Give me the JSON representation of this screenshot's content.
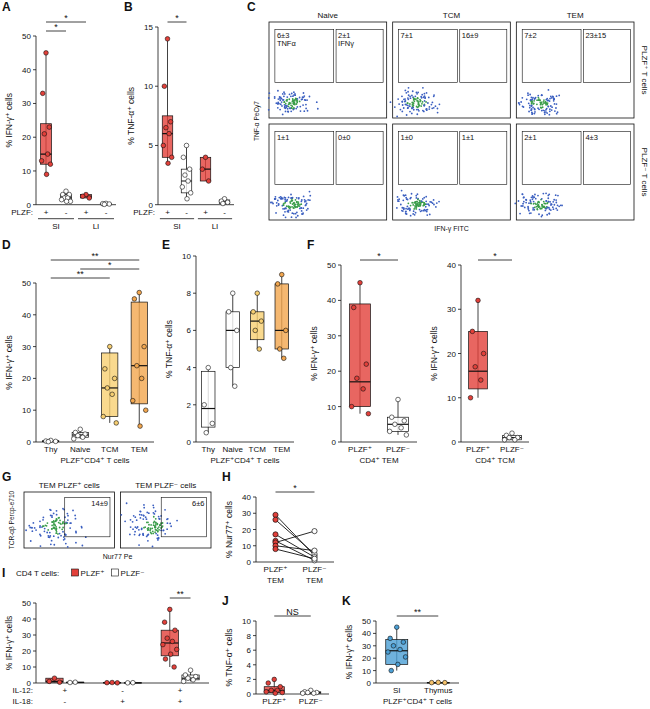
{
  "chart_data": [
    {
      "type": "box",
      "title": "A",
      "ylabel": "% IFN-γ⁺ cells",
      "ylim": [
        0,
        50
      ],
      "yticks": [
        0,
        10,
        20,
        30,
        40,
        50
      ],
      "xlabel": "PLZF:",
      "categories": [
        "+",
        "-",
        "+",
        "-"
      ],
      "groups": [
        {
          "label": "SI",
          "from": 0,
          "to": 1
        },
        {
          "label": "LI",
          "from": 2,
          "to": 3
        }
      ],
      "colors": [
        "#e2403a",
        "#ffffff",
        "#e2403a",
        "#ffffff"
      ],
      "points": [
        [
          45,
          33,
          23,
          21,
          15,
          13,
          12,
          9
        ],
        [
          4,
          3,
          3,
          2,
          2,
          1.5,
          1,
          1
        ],
        [
          3,
          2.5,
          2
        ],
        [
          0.4,
          0.3,
          0.2,
          0.1
        ]
      ],
      "min": [
        9,
        1,
        2,
        0.1
      ],
      "q1": [
        12,
        1.5,
        2,
        0.1
      ],
      "median": [
        15,
        2,
        2.5,
        0.2
      ],
      "q3": [
        24,
        3,
        3,
        0.3
      ],
      "max": [
        45,
        4,
        3,
        0.4
      ],
      "brackets": [
        {
          "from": 0,
          "to": 2,
          "label": "*"
        },
        {
          "from": 0,
          "to": 1,
          "label": "*"
        }
      ]
    },
    {
      "type": "box",
      "title": "B",
      "ylabel": "% TNF-α⁺ cells",
      "ylim": [
        0,
        15
      ],
      "yticks": [
        0,
        5,
        10,
        15
      ],
      "xlabel": "PLZF:",
      "categories": [
        "+",
        "-",
        "+",
        "-"
      ],
      "groups": [
        {
          "label": "SI",
          "from": 0,
          "to": 1
        },
        {
          "label": "LI",
          "from": 2,
          "to": 3
        }
      ],
      "colors": [
        "#e2403a",
        "#ffffff",
        "#e2403a",
        "#ffffff"
      ],
      "points": [
        [
          14,
          10,
          7,
          6.5,
          6,
          5,
          4,
          3.5
        ],
        [
          5,
          4,
          3,
          2.5,
          2,
          1.5,
          1,
          0.5
        ],
        [
          4,
          3,
          2
        ],
        [
          0.5,
          0.3,
          0.2,
          0.1
        ]
      ],
      "min": [
        3.5,
        0.5,
        2,
        0.1
      ],
      "q1": [
        4,
        1,
        2,
        0.1
      ],
      "median": [
        6,
        2,
        3,
        0.25
      ],
      "q3": [
        7.5,
        3,
        4,
        0.4
      ],
      "max": [
        14,
        5,
        4,
        0.5
      ],
      "brackets": [
        {
          "from": 0,
          "to": 1,
          "label": "*"
        }
      ]
    },
    {
      "type": "flow",
      "title": "C",
      "xlabel": "IFN-γ FITC",
      "ylabel": "TNF-α PeCy7",
      "columns": [
        "Naive",
        "TCM",
        "TEM"
      ],
      "rows": [
        "PLZF⁺ T cells",
        "PLZF⁻ T cells"
      ],
      "gate_names": [
        "TNFα",
        "IFNγ"
      ],
      "gates": [
        [
          [
            "6±3",
            "2±1"
          ],
          [
            "7±1",
            "16±9"
          ],
          [
            "7±2",
            "23±15"
          ]
        ],
        [
          [
            "1±1",
            "0±0"
          ],
          [
            "1±0",
            "1±1"
          ],
          [
            "2±1",
            "4±3"
          ]
        ]
      ]
    },
    {
      "type": "box",
      "title": "D",
      "ylabel": "% IFN-γ⁺ cells",
      "ylim": [
        0,
        50
      ],
      "yticks": [
        0,
        10,
        20,
        30,
        40,
        50
      ],
      "xlabel": "PLZF⁺CD4⁺ T cells",
      "categories": [
        "Thy",
        "Naive",
        "TCM",
        "TEM"
      ],
      "colors": [
        "#ffffff",
        "#ffffff",
        "#f7cf72",
        "#f2a64e"
      ],
      "points": [
        [
          0.5,
          0.3,
          0.2,
          0.1
        ],
        [
          4,
          3,
          2.5,
          2,
          1.5,
          1
        ],
        [
          30,
          23,
          20,
          17,
          15,
          8,
          6
        ],
        [
          47,
          45,
          30,
          24,
          20,
          13,
          10,
          5
        ]
      ],
      "min": [
        0.1,
        1,
        6,
        5
      ],
      "q1": [
        0.1,
        1.5,
        8,
        12
      ],
      "median": [
        0.25,
        2.2,
        17,
        24
      ],
      "q3": [
        0.4,
        3,
        28,
        44
      ],
      "max": [
        0.5,
        4,
        30,
        47
      ],
      "brackets": [
        {
          "from": 0,
          "to": 3,
          "label": "**"
        },
        {
          "from": 1,
          "to": 3,
          "label": "*"
        },
        {
          "from": 0,
          "to": 2,
          "label": "**"
        }
      ]
    },
    {
      "type": "box",
      "title": "E",
      "ylabel": "% TNF-α⁺ cells",
      "ylim": [
        0,
        10
      ],
      "yticks": [
        0,
        2,
        4,
        6,
        8,
        10
      ],
      "xlabel": "PLZF⁺CD4⁺ T cells",
      "categories": [
        "Thy",
        "Naive",
        "TCM",
        "TEM"
      ],
      "colors": [
        "#ffffff",
        "#ffffff",
        "#f7cf72",
        "#f2a64e"
      ],
      "points": [
        [
          4,
          2,
          1,
          0.5
        ],
        [
          8,
          7,
          6,
          4,
          3
        ],
        [
          8,
          7,
          6.5,
          6,
          5
        ],
        [
          9,
          8.5,
          6,
          5,
          4.5
        ]
      ],
      "min": [
        0.5,
        3,
        5,
        4.5
      ],
      "q1": [
        0.8,
        4,
        5.5,
        5
      ],
      "median": [
        1.8,
        6,
        6.5,
        6
      ],
      "q3": [
        3.8,
        7,
        7,
        8.5
      ],
      "max": [
        4,
        8,
        8,
        9
      ],
      "brackets": []
    },
    {
      "type": "box",
      "title": "F",
      "ylabel": "% IFN-γ⁺ cells",
      "ylim": [
        0,
        50
      ],
      "yticks": [
        0,
        10,
        20,
        30,
        40,
        50
      ],
      "xlabel": "CD4⁺ TEM",
      "categories": [
        "PLZF⁺",
        "PLZF⁻"
      ],
      "colors": [
        "#e2403a",
        "#ffffff"
      ],
      "points": [
        [
          45,
          38,
          22,
          18,
          15,
          10,
          8
        ],
        [
          12,
          7,
          6,
          5,
          4,
          3,
          2
        ]
      ],
      "min": [
        8,
        2
      ],
      "q1": [
        10,
        3
      ],
      "median": [
        17,
        5
      ],
      "q3": [
        39,
        7
      ],
      "max": [
        45,
        12
      ],
      "brackets": [
        {
          "from": 0,
          "to": 1,
          "label": "*"
        }
      ]
    },
    {
      "type": "box",
      "ylabel": "% IFN-γ⁺ cells",
      "ylim": [
        0,
        40
      ],
      "yticks": [
        0,
        10,
        20,
        30,
        40
      ],
      "xlabel": "CD4⁺ TCM",
      "categories": [
        "PLZF⁺",
        "PLZF⁻"
      ],
      "colors": [
        "#e2403a",
        "#ffffff"
      ],
      "points": [
        [
          32,
          25,
          20,
          17,
          14,
          10
        ],
        [
          2,
          1.5,
          1,
          1,
          0.5,
          0.5
        ]
      ],
      "min": [
        10,
        0.5
      ],
      "q1": [
        12,
        0.5
      ],
      "median": [
        16,
        1
      ],
      "q3": [
        25,
        1.5
      ],
      "max": [
        32,
        2
      ],
      "brackets": [
        {
          "from": 0,
          "to": 1,
          "label": "*"
        }
      ]
    },
    {
      "type": "flow",
      "title": "G",
      "xlabel": "Nur77 Pe",
      "ylabel": "TCR-αβ Percp-e710",
      "columns": [
        "TEM PLZF⁺ cells",
        "TEM PLZF⁻ cells"
      ],
      "gates": [
        [
          [
            "14±9"
          ],
          [
            "6±6"
          ]
        ]
      ]
    },
    {
      "type": "paired",
      "title": "H",
      "ylabel": "% Nur77⁺ cells",
      "ylim": [
        0,
        40
      ],
      "yticks": [
        0,
        10,
        20,
        30,
        40
      ],
      "categories": [
        "PLZF⁺ TEM",
        "PLZF⁻ TEM"
      ],
      "colors": [
        "#e2403a",
        "#ffffff"
      ],
      "pairs": [
        [
          29,
          4
        ],
        [
          26,
          5
        ],
        [
          17,
          3
        ],
        [
          13,
          1
        ],
        [
          12,
          19
        ],
        [
          10,
          7
        ],
        [
          8,
          2
        ]
      ],
      "brackets": [
        {
          "from": 0,
          "to": 1,
          "label": "*"
        }
      ]
    },
    {
      "type": "box",
      "title": "I",
      "ylabel": "% IFN-γ⁺ cells",
      "ylim": [
        0,
        50
      ],
      "yticks": [
        0,
        10,
        20,
        30,
        40,
        50
      ],
      "legend": "top-left",
      "legend_title": "CD4 T cells:",
      "conditions": [
        {
          "label": "IL-12:",
          "values": [
            "+",
            "-",
            "+"
          ]
        },
        {
          "label": "IL-18:",
          "values": [
            "-",
            "+",
            "+"
          ]
        }
      ],
      "series": [
        {
          "name": "PLZF⁺",
          "color": "#e2403a",
          "points": [
            [
              3,
              1,
              0.5
            ],
            [
              0.3,
              0.2,
              0.1
            ],
            [
              46,
              38,
              33,
              28,
              26,
              24,
              21,
              18,
              15,
              10
            ]
          ],
          "min": [
            0.5,
            0.1,
            10
          ],
          "q1": [
            0.5,
            0.1,
            17
          ],
          "median": [
            1,
            0.2,
            25
          ],
          "q3": [
            3,
            0.3,
            33
          ],
          "max": [
            3,
            0.3,
            46
          ]
        },
        {
          "name": "PLZF⁻",
          "color": "#ffffff",
          "points": [
            [
              0.5,
              0.3
            ],
            [
              0.2,
              0.1
            ],
            [
              8,
              5,
              4,
              3,
              2,
              1
            ]
          ],
          "min": [
            0.3,
            0.1,
            1
          ],
          "q1": [
            0.3,
            0.1,
            2
          ],
          "median": [
            0.4,
            0.15,
            3
          ],
          "q3": [
            0.5,
            0.2,
            5
          ],
          "max": [
            0.5,
            0.2,
            8
          ]
        }
      ],
      "brackets": [
        {
          "from": 2,
          "to": 2,
          "label": "**"
        }
      ]
    },
    {
      "type": "box",
      "title": "J",
      "ylabel": "% TNF-α⁺ cells",
      "ylim": [
        0,
        10
      ],
      "yticks": [
        0,
        2,
        4,
        6,
        8,
        10
      ],
      "categories": [
        "PLZF⁺",
        "PLZF⁻"
      ],
      "colors": [
        "#e2403a",
        "#ffffff"
      ],
      "points": [
        [
          2,
          1.5,
          1,
          0.5,
          0.5,
          0.3,
          0.2,
          0.1
        ],
        [
          0.5,
          0.3,
          0.2,
          0.2,
          0.1,
          0.1
        ]
      ],
      "min": [
        0.1,
        0.1
      ],
      "q1": [
        0.2,
        0.1
      ],
      "median": [
        0.5,
        0.2
      ],
      "q3": [
        1,
        0.3
      ],
      "max": [
        2,
        0.5
      ],
      "brackets": [
        {
          "from": 0,
          "to": 1,
          "label": "NS"
        }
      ]
    },
    {
      "type": "box",
      "title": "K",
      "ylabel": "% IFN-γ⁺ cells",
      "ylim": [
        0,
        50
      ],
      "yticks": [
        0,
        10,
        20,
        30,
        40,
        50
      ],
      "xlabel": "PLZF⁺CD4⁺ T cells",
      "categories": [
        "SI",
        "Thymus"
      ],
      "colors": [
        "#4b9fd5",
        "#f5c26b"
      ],
      "points": [
        [
          45,
          36,
          33,
          30,
          27,
          25,
          21,
          15,
          10
        ],
        [
          0.5,
          0.3,
          0.3
        ]
      ],
      "min": [
        10,
        0.3
      ],
      "q1": [
        15,
        0.3
      ],
      "median": [
        26,
        0.3
      ],
      "q3": [
        35,
        0.4
      ],
      "max": [
        45,
        0.5
      ],
      "brackets": [
        {
          "from": 0,
          "to": 1,
          "label": "**"
        }
      ]
    }
  ]
}
